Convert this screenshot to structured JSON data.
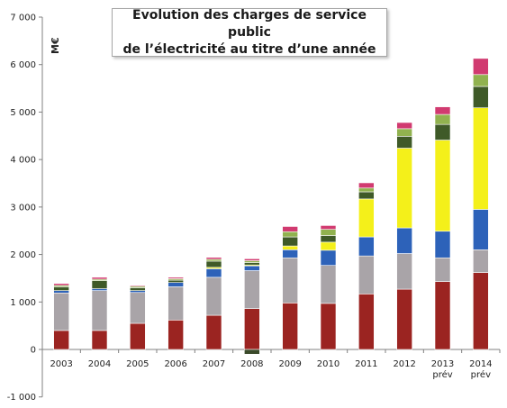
{
  "chart_data": {
    "type": "bar",
    "stacked": true,
    "title_lines": [
      "Evolution des charges de service public",
      "de l’électricité au titre d’une année"
    ],
    "ylabel": "M€",
    "ylim": [
      -1000,
      7000
    ],
    "yticks": [
      -1000,
      0,
      1000,
      2000,
      3000,
      4000,
      5000,
      6000,
      7000
    ],
    "ytick_labels": [
      "-1 000",
      "0",
      "1 000",
      "2 000",
      "3 000",
      "4 000",
      "5 000",
      "6 000",
      "7 000"
    ],
    "categories": [
      "2003",
      "2004",
      "2005",
      "2006",
      "2007",
      "2008",
      "2009",
      "2010",
      "2011",
      "2012",
      "2013",
      "2014"
    ],
    "category_sublabels": [
      "",
      "",
      "",
      "",
      "",
      "",
      "",
      "",
      "",
      "",
      "prév",
      "prév"
    ],
    "grid": false,
    "legend": "none",
    "series": [
      {
        "color": "#9b2421",
        "values": [
          400,
          400,
          550,
          620,
          720,
          860,
          980,
          970,
          1170,
          1270,
          1430,
          1620
        ]
      },
      {
        "color": "#a9a4a8",
        "values": [
          790,
          840,
          650,
          700,
          800,
          800,
          950,
          800,
          800,
          750,
          500,
          480
        ]
      },
      {
        "color": "#2d62b9",
        "values": [
          50,
          40,
          40,
          90,
          180,
          100,
          170,
          320,
          400,
          540,
          560,
          850
        ]
      },
      {
        "color": "#f4f01a",
        "values": [
          0,
          0,
          0,
          0,
          30,
          20,
          80,
          170,
          800,
          1680,
          1920,
          2140
        ]
      },
      {
        "color": "#3f5a28",
        "values": [
          80,
          170,
          60,
          50,
          130,
          50,
          190,
          140,
          150,
          250,
          330,
          450
        ]
      },
      {
        "color": "#91b24f",
        "values": [
          30,
          30,
          30,
          30,
          40,
          40,
          110,
          130,
          80,
          160,
          210,
          250
        ]
      },
      {
        "color": "#d13a70",
        "values": [
          40,
          40,
          20,
          30,
          40,
          40,
          110,
          80,
          110,
          130,
          160,
          340
        ]
      },
      {
        "color": "#3a4a2a",
        "values": [
          0,
          0,
          0,
          0,
          0,
          -100,
          0,
          0,
          0,
          0,
          0,
          0
        ]
      }
    ]
  }
}
